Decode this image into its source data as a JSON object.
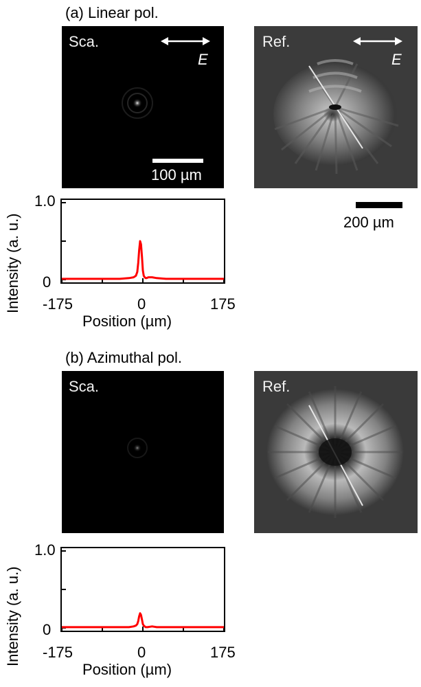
{
  "section_a": {
    "title": "(a) Linear pol.",
    "sca_label": "Sca.",
    "ref_label": "Ref.",
    "field_label": "E",
    "scale_small": "100 µm",
    "scale_large": "200 µm"
  },
  "section_b": {
    "title": "(b) Azimuthal pol.",
    "sca_label": "Sca.",
    "ref_label": "Ref."
  },
  "colors": {
    "trace": "#ff0000",
    "image_bg": "#000000",
    "ref_bg": "#3a3a3a"
  },
  "chart_data": [
    {
      "type": "line",
      "title": "",
      "xlabel": "Position (µm)",
      "ylabel": "Intensity (a. u.)",
      "xlim": [
        -175,
        175
      ],
      "ylim": [
        0,
        1.0
      ],
      "xticks": [
        "-175",
        "0",
        "175"
      ],
      "yticks": [
        "0",
        "1.0"
      ],
      "series": [
        {
          "x": [
            -175,
            -100,
            -50,
            -30,
            -20,
            -15,
            -12,
            -10,
            -8,
            -6,
            -4,
            -2,
            0,
            2,
            4,
            6,
            8,
            12,
            20,
            30,
            50,
            100,
            175
          ],
          "y": [
            0.01,
            0.01,
            0.01,
            0.02,
            0.03,
            0.05,
            0.1,
            0.22,
            0.38,
            0.5,
            0.46,
            0.3,
            0.12,
            0.05,
            0.03,
            0.02,
            0.02,
            0.03,
            0.03,
            0.02,
            0.01,
            0.01,
            0.01
          ]
        }
      ]
    },
    {
      "type": "line",
      "title": "",
      "xlabel": "Position (µm)",
      "ylabel": "Intensity (a. u.)",
      "xlim": [
        -175,
        175
      ],
      "ylim": [
        0,
        1.0
      ],
      "xticks": [
        "-175",
        "0",
        "175"
      ],
      "yticks": [
        "0",
        "1.0"
      ],
      "series": [
        {
          "x": [
            -175,
            -100,
            -50,
            -30,
            -20,
            -15,
            -12,
            -10,
            -8,
            -6,
            -4,
            -2,
            0,
            2,
            4,
            6,
            10,
            20,
            30,
            50,
            100,
            175
          ],
          "y": [
            0.01,
            0.01,
            0.01,
            0.01,
            0.02,
            0.03,
            0.05,
            0.09,
            0.15,
            0.19,
            0.17,
            0.11,
            0.05,
            0.03,
            0.02,
            0.01,
            0.01,
            0.02,
            0.01,
            0.01,
            0.01,
            0.01
          ]
        }
      ]
    }
  ]
}
